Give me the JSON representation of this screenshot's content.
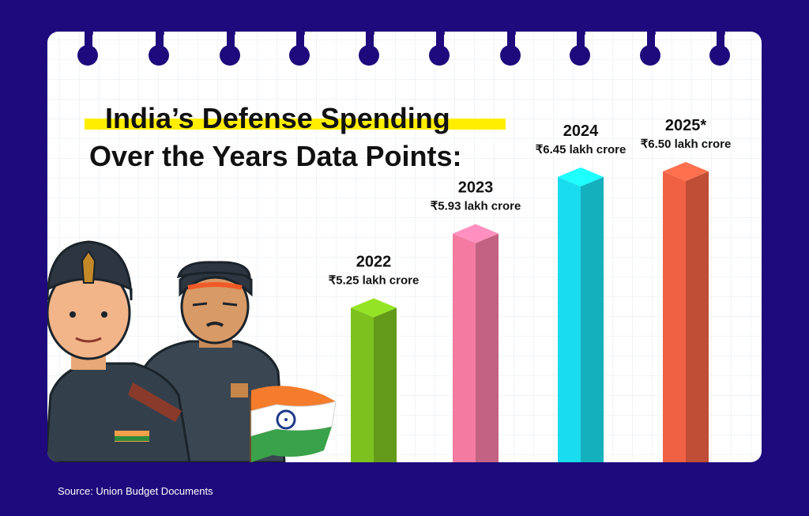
{
  "title_line1": "India’s Defense Spending",
  "title_line2": "Over the Years Data Points:",
  "source": "Source: Union Budget Documents",
  "colors": {
    "background": "#1e0a7c",
    "paper": "#ffffff",
    "grid": "#e4e7ee",
    "highlight": "#ffee00"
  },
  "chart_data": {
    "type": "bar",
    "categories": [
      "2022",
      "2023",
      "2024",
      "2025*"
    ],
    "values": [
      5.25,
      5.93,
      6.45,
      6.5
    ],
    "value_labels": [
      "₹5.25 lakh crore",
      "₹5.93 lakh crore",
      "₹6.45 lakh crore",
      "₹6.50 lakh crore"
    ],
    "unit": "lakh crore",
    "colors": [
      "#7dc11f",
      "#f47aa2",
      "#19dcee",
      "#f06042"
    ],
    "title": "India’s Defense Spending Over the Years Data Points:",
    "grid": true,
    "legend": "none"
  }
}
